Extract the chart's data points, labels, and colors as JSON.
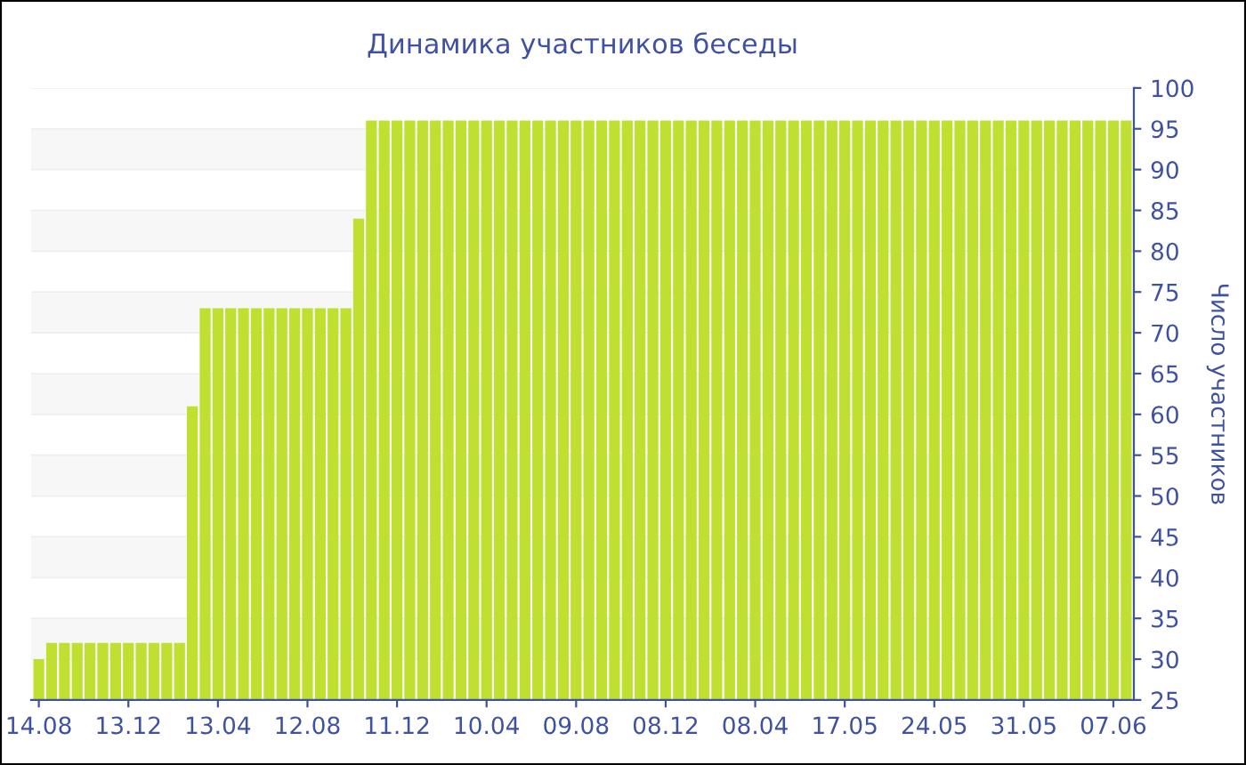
{
  "chart_data": {
    "type": "bar",
    "title": "Динамика участников беседы",
    "ylabel": "Число участников",
    "categories": [
      "14.08",
      null,
      null,
      null,
      null,
      null,
      null,
      "13.12",
      null,
      null,
      null,
      null,
      null,
      null,
      "13.04",
      null,
      null,
      null,
      null,
      null,
      null,
      "12.08",
      null,
      null,
      null,
      null,
      null,
      null,
      "11.12",
      null,
      null,
      null,
      null,
      null,
      null,
      "10.04",
      null,
      null,
      null,
      null,
      null,
      null,
      "09.08",
      null,
      null,
      null,
      null,
      null,
      null,
      "08.12",
      null,
      null,
      null,
      null,
      null,
      null,
      "08.04",
      null,
      null,
      null,
      null,
      null,
      null,
      "17.05",
      null,
      null,
      null,
      null,
      null,
      null,
      "24.05",
      null,
      null,
      null,
      null,
      null,
      null,
      "31.05",
      null,
      null,
      null,
      null,
      null,
      null,
      "07.06",
      null
    ],
    "values": [
      30,
      32,
      32,
      32,
      32,
      32,
      32,
      32,
      32,
      32,
      32,
      32,
      61,
      73,
      73,
      73,
      73,
      73,
      73,
      73,
      73,
      73,
      73,
      73,
      73,
      84,
      96,
      96,
      96,
      96,
      96,
      96,
      96,
      96,
      96,
      96,
      96,
      96,
      96,
      96,
      96,
      96,
      96,
      96,
      96,
      96,
      96,
      96,
      96,
      96,
      96,
      96,
      96,
      96,
      96,
      96,
      96,
      96,
      96,
      96,
      96,
      96,
      96,
      96,
      96,
      96,
      96,
      96,
      96,
      96,
      96,
      96,
      96,
      96,
      96,
      96,
      96,
      96,
      96,
      96,
      96,
      96,
      96,
      96,
      96,
      96
    ],
    "color": "#bfe030",
    "ylim": [
      25,
      100
    ],
    "yticks": [
      25,
      30,
      35,
      40,
      45,
      50,
      55,
      60,
      65,
      70,
      75,
      80,
      85,
      90,
      95,
      100
    ],
    "grid": "y"
  }
}
